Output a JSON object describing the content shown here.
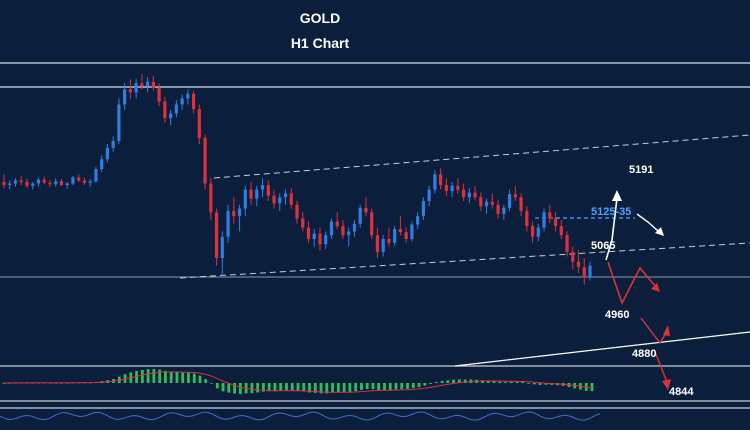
{
  "chart_data": {
    "type": "candlestick",
    "title": "GOLD",
    "subtitle": "H1 Chart",
    "colors": {
      "background": "#0b1f3d",
      "bull": "#2f7fe0",
      "bear": "#e0303a",
      "forecast_up": "#ffffff",
      "forecast_down": "#e0303a",
      "highlight": "#4ba3ff",
      "macd_hist": "#2fbf5a",
      "macd_signal": "#e0303a"
    },
    "levels": [
      "5191",
      "5125-35",
      "5065",
      "4960",
      "4880",
      "4844"
    ],
    "highlight_level": "5125-35",
    "candles": [
      [
        5050,
        5060,
        5042,
        5046
      ],
      [
        5046,
        5052,
        5040,
        5048
      ],
      [
        5048,
        5055,
        5044,
        5052
      ],
      [
        5052,
        5058,
        5046,
        5050
      ],
      [
        5050,
        5054,
        5042,
        5045
      ],
      [
        5045,
        5050,
        5040,
        5048
      ],
      [
        5048,
        5056,
        5044,
        5053
      ],
      [
        5053,
        5057,
        5047,
        5049
      ],
      [
        5049,
        5053,
        5043,
        5047
      ],
      [
        5047,
        5055,
        5044,
        5051
      ],
      [
        5051,
        5054,
        5045,
        5046
      ],
      [
        5046,
        5050,
        5041,
        5048
      ],
      [
        5048,
        5058,
        5046,
        5056
      ],
      [
        5056,
        5060,
        5050,
        5052
      ],
      [
        5052,
        5056,
        5046,
        5049
      ],
      [
        5049,
        5054,
        5044,
        5051
      ],
      [
        5051,
        5070,
        5049,
        5067
      ],
      [
        5067,
        5085,
        5063,
        5080
      ],
      [
        5080,
        5100,
        5076,
        5095
      ],
      [
        5095,
        5110,
        5090,
        5104
      ],
      [
        5104,
        5160,
        5100,
        5152
      ],
      [
        5152,
        5180,
        5145,
        5172
      ],
      [
        5172,
        5185,
        5160,
        5168
      ],
      [
        5168,
        5186,
        5160,
        5180
      ],
      [
        5180,
        5192,
        5172,
        5176
      ],
      [
        5176,
        5188,
        5168,
        5182
      ],
      [
        5182,
        5190,
        5170,
        5174
      ],
      [
        5174,
        5180,
        5150,
        5156
      ],
      [
        5156,
        5162,
        5128,
        5134
      ],
      [
        5134,
        5145,
        5125,
        5140
      ],
      [
        5140,
        5158,
        5135,
        5152
      ],
      [
        5152,
        5165,
        5145,
        5160
      ],
      [
        5160,
        5172,
        5152,
        5166
      ],
      [
        5166,
        5170,
        5140,
        5146
      ],
      [
        5146,
        5152,
        5100,
        5108
      ],
      [
        5108,
        5112,
        5040,
        5048
      ],
      [
        5048,
        5055,
        5000,
        5010
      ],
      [
        5010,
        5015,
        4940,
        4950
      ],
      [
        4950,
        4985,
        4925,
        4978
      ],
      [
        4978,
        5020,
        4970,
        5012
      ],
      [
        5012,
        5030,
        4995,
        5005
      ],
      [
        5005,
        5020,
        4985,
        5015
      ],
      [
        5015,
        5045,
        5005,
        5040
      ],
      [
        5040,
        5050,
        5020,
        5028
      ],
      [
        5028,
        5045,
        5018,
        5040
      ],
      [
        5040,
        5055,
        5030,
        5046
      ],
      [
        5046,
        5052,
        5025,
        5032
      ],
      [
        5032,
        5040,
        5015,
        5022
      ],
      [
        5022,
        5035,
        5012,
        5030
      ],
      [
        5030,
        5040,
        5020,
        5035
      ],
      [
        5035,
        5042,
        5015,
        5020
      ],
      [
        5020,
        5025,
        4995,
        5002
      ],
      [
        5002,
        5010,
        4985,
        4990
      ],
      [
        4990,
        4998,
        4970,
        4975
      ],
      [
        4975,
        4988,
        4965,
        4982
      ],
      [
        4982,
        4990,
        4960,
        4968
      ],
      [
        4968,
        4985,
        4962,
        4980
      ],
      [
        4980,
        5002,
        4975,
        4998
      ],
      [
        4998,
        5010,
        4988,
        4992
      ],
      [
        4992,
        5000,
        4975,
        4980
      ],
      [
        4980,
        4990,
        4965,
        4985
      ],
      [
        4985,
        5000,
        4978,
        4995
      ],
      [
        4995,
        5020,
        4990,
        5016
      ],
      [
        5016,
        5030,
        5005,
        5010
      ],
      [
        5010,
        5015,
        4975,
        4980
      ],
      [
        4980,
        4990,
        4950,
        4958
      ],
      [
        4958,
        4980,
        4952,
        4975
      ],
      [
        4975,
        4990,
        4965,
        4970
      ],
      [
        4970,
        4992,
        4966,
        4988
      ],
      [
        4988,
        5005,
        4980,
        4984
      ],
      [
        4984,
        4990,
        4970,
        4975
      ],
      [
        4975,
        4998,
        4972,
        4994
      ],
      [
        4994,
        5010,
        4988,
        5005
      ],
      [
        5005,
        5030,
        5000,
        5025
      ],
      [
        5025,
        5045,
        5018,
        5040
      ],
      [
        5040,
        5065,
        5035,
        5060
      ],
      [
        5060,
        5068,
        5040,
        5046
      ],
      [
        5046,
        5055,
        5032,
        5038
      ],
      [
        5038,
        5050,
        5030,
        5045
      ],
      [
        5045,
        5055,
        5035,
        5040
      ],
      [
        5040,
        5048,
        5025,
        5030
      ],
      [
        5030,
        5042,
        5022,
        5036
      ],
      [
        5036,
        5045,
        5026,
        5030
      ],
      [
        5030,
        5036,
        5012,
        5018
      ],
      [
        5018,
        5028,
        5008,
        5024
      ],
      [
        5024,
        5035,
        5015,
        5020
      ],
      [
        5020,
        5026,
        5002,
        5008
      ],
      [
        5008,
        5020,
        5000,
        5016
      ],
      [
        5016,
        5040,
        5012,
        5034
      ],
      [
        5034,
        5045,
        5025,
        5030
      ],
      [
        5030,
        5035,
        5005,
        5012
      ],
      [
        5012,
        5018,
        4985,
        4992
      ],
      [
        4992,
        4998,
        4970,
        4978
      ],
      [
        4978,
        4995,
        4972,
        4990
      ],
      [
        4990,
        5015,
        4985,
        5010
      ],
      [
        5010,
        5020,
        4996,
        5002
      ],
      [
        5002,
        5010,
        4985,
        4992
      ],
      [
        4992,
        5000,
        4975,
        4980
      ],
      [
        4980,
        4985,
        4952,
        4958
      ],
      [
        4958,
        4965,
        4935,
        4945
      ],
      [
        4945,
        4960,
        4930,
        4938
      ],
      [
        4938,
        4950,
        4915,
        4925
      ],
      [
        4925,
        4945,
        4920,
        4940
      ]
    ]
  }
}
